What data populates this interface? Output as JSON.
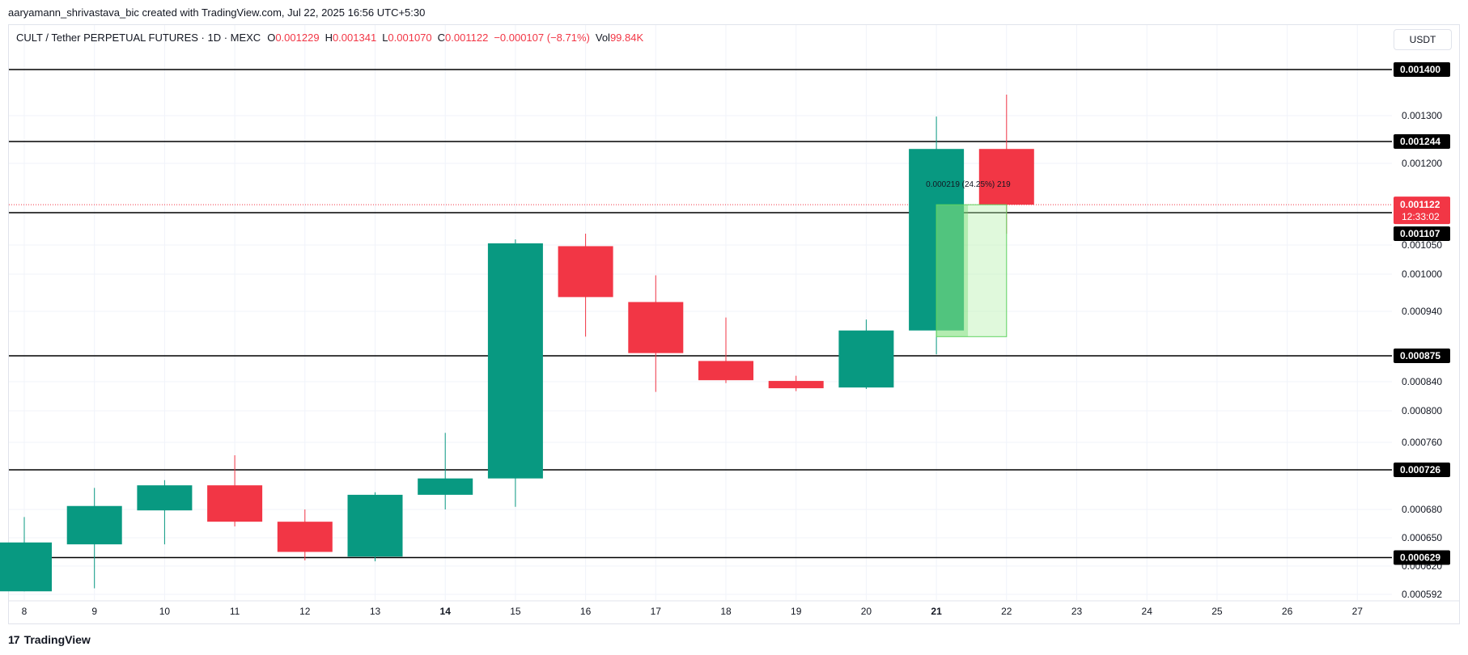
{
  "header": {
    "caption": "aaryamann_shrivastava_bic created with TradingView.com, Jul 22, 2025 16:56 UTC+5:30"
  },
  "legend": {
    "symbol": "CULT / Tether PERPETUAL FUTURES · 1D · MEXC",
    "open_label": "O",
    "open": "0.001229",
    "high_label": "H",
    "high": "0.001341",
    "low_label": "L",
    "low": "0.001070",
    "close_label": "C",
    "close": "0.001122",
    "change": "−0.000107 (−8.71%)",
    "vol_label": "Vol",
    "vol": "99.84K"
  },
  "currency_button": "USDT",
  "footer": {
    "logo_mark": "17",
    "logo_text": "TradingView"
  },
  "colors": {
    "up": "#089981",
    "down": "#f23645",
    "level_line": "#000000",
    "price_line": "#f23645",
    "measure_fill": "#b2f0a8",
    "measure_border": "#5fd35f"
  },
  "chart_data": {
    "type": "candlestick",
    "x_ticks": [
      {
        "label": "8",
        "bold": false
      },
      {
        "label": "9",
        "bold": false
      },
      {
        "label": "10",
        "bold": false
      },
      {
        "label": "11",
        "bold": false
      },
      {
        "label": "12",
        "bold": false
      },
      {
        "label": "13",
        "bold": false
      },
      {
        "label": "14",
        "bold": true
      },
      {
        "label": "15",
        "bold": false
      },
      {
        "label": "16",
        "bold": false
      },
      {
        "label": "17",
        "bold": false
      },
      {
        "label": "18",
        "bold": false
      },
      {
        "label": "19",
        "bold": false
      },
      {
        "label": "20",
        "bold": false
      },
      {
        "label": "21",
        "bold": true
      },
      {
        "label": "22",
        "bold": false
      },
      {
        "label": "23",
        "bold": false
      },
      {
        "label": "24",
        "bold": false
      },
      {
        "label": "25",
        "bold": false
      },
      {
        "label": "26",
        "bold": false
      },
      {
        "label": "27",
        "bold": false
      }
    ],
    "candles": [
      {
        "day": "8",
        "o": 0.000595,
        "h": 0.000672,
        "l": 0.000595,
        "c": 0.000645
      },
      {
        "day": "9",
        "o": 0.000643,
        "h": 0.000705,
        "l": 0.000598,
        "c": 0.000684
      },
      {
        "day": "10",
        "o": 0.000679,
        "h": 0.000714,
        "l": 0.000643,
        "c": 0.000708
      },
      {
        "day": "11",
        "o": 0.000708,
        "h": 0.000744,
        "l": 0.000662,
        "c": 0.000667
      },
      {
        "day": "12",
        "o": 0.000667,
        "h": 0.00068,
        "l": 0.000626,
        "c": 0.000635
      },
      {
        "day": "13",
        "o": 0.00063,
        "h": 0.0007,
        "l": 0.000625,
        "c": 0.000697
      },
      {
        "day": "14",
        "o": 0.000697,
        "h": 0.000772,
        "l": 0.00068,
        "c": 0.000716
      },
      {
        "day": "15",
        "o": 0.000716,
        "h": 0.00106,
        "l": 0.000683,
        "c": 0.001053
      },
      {
        "day": "16",
        "o": 0.001048,
        "h": 0.00107,
        "l": 0.000903,
        "c": 0.000963
      },
      {
        "day": "17",
        "o": 0.000955,
        "h": 0.000998,
        "l": 0.000826,
        "c": 0.000879
      },
      {
        "day": "18",
        "o": 0.000868,
        "h": 0.000931,
        "l": 0.000838,
        "c": 0.000842
      },
      {
        "day": "19",
        "o": 0.000841,
        "h": 0.000848,
        "l": 0.000827,
        "c": 0.000831
      },
      {
        "day": "20",
        "o": 0.000832,
        "h": 0.000928,
        "l": 0.00083,
        "c": 0.000912
      },
      {
        "day": "21",
        "o": 0.000912,
        "h": 0.001298,
        "l": 0.000877,
        "c": 0.001229
      },
      {
        "day": "22",
        "o": 0.001229,
        "h": 0.001341,
        "l": 0.00107,
        "c": 0.001122
      }
    ],
    "y_ticks": [
      "0.001300",
      "0.001200",
      "0.001050",
      "0.001000",
      "0.000940",
      "0.000840",
      "0.000800",
      "0.000760",
      "0.000680",
      "0.000650",
      "0.000620",
      "0.000592"
    ],
    "levels": [
      {
        "value": 0.0014,
        "label": "0.001400"
      },
      {
        "value": 0.001244,
        "label": "0.001244"
      },
      {
        "value": 0.001107,
        "label": "0.001107"
      },
      {
        "value": 0.000875,
        "label": "0.000875"
      },
      {
        "value": 0.000726,
        "label": "0.000726"
      },
      {
        "value": 0.000629,
        "label": "0.000629"
      }
    ],
    "current_price": {
      "value": 0.001122,
      "label": "0.001122",
      "countdown": "12:33:02"
    },
    "measure": {
      "text": "0.000219 (24.25%) 219",
      "from_day": "21",
      "to_day": "22",
      "from_price": 0.000903,
      "to_price": 0.001122
    }
  }
}
